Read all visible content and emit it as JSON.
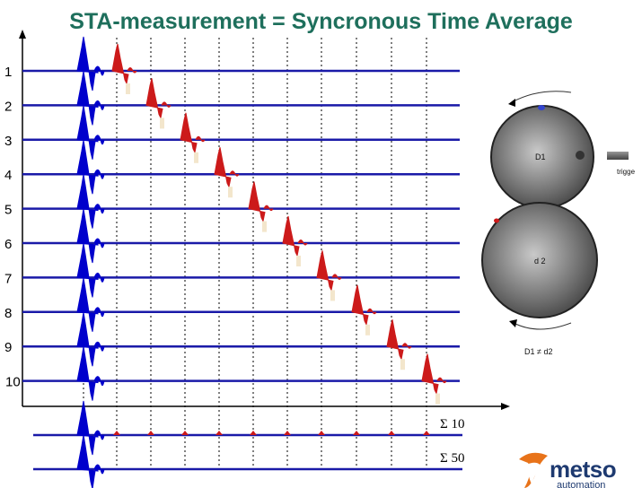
{
  "title": "STA-measurement = Syncronous Time Average",
  "rows": [
    "1",
    "2",
    "3",
    "4",
    "5",
    "6",
    "7",
    "8",
    "9",
    "10"
  ],
  "sums": [
    "Σ 10",
    "Σ 50"
  ],
  "discs": {
    "upper": "D1",
    "lower": "d 2",
    "relation": "D1 ≠ d2",
    "trigger": "trigge"
  },
  "logo": {
    "name": "metso",
    "sub": "automation"
  },
  "colors": {
    "title": "#1e6f5c",
    "signal": "#0000cc",
    "pulse": "#cc1a1a",
    "axis": "#000000"
  }
}
